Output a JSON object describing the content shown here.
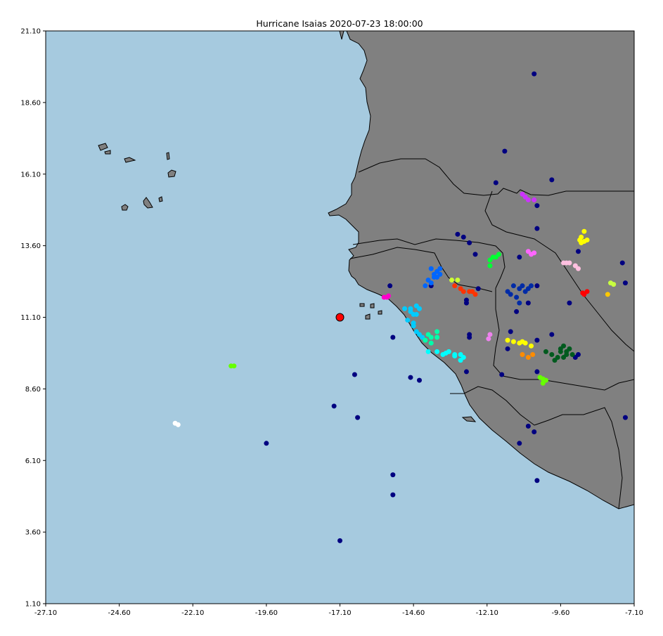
{
  "chart_data": {
    "type": "scatter",
    "title": "Hurricane Isaias 2020-07-23 18:00:00",
    "xlabel": "",
    "ylabel": "",
    "xlim": [
      -27.1,
      -7.1
    ],
    "ylim": [
      1.1,
      21.1
    ],
    "x_ticks": [
      "-27.10",
      "-24.60",
      "-22.10",
      "-19.60",
      "-17.10",
      "-14.60",
      "-12.10",
      "-9.60",
      "-7.10"
    ],
    "y_ticks": [
      "1.10",
      "3.60",
      "6.10",
      "8.60",
      "11.10",
      "13.60",
      "16.10",
      "18.60",
      "21.10"
    ],
    "grid": false,
    "colors": {
      "ocean": "#a6cadf",
      "land": "#808080",
      "border": "#000000",
      "storm_center": "#ff0000"
    },
    "storm_center": {
      "x": -17.1,
      "y": 11.1
    },
    "series": [
      {
        "color": "#000080",
        "points": [
          [
            -10.5,
            19.6
          ],
          [
            -11.5,
            16.9
          ],
          [
            -9.9,
            15.9
          ],
          [
            -11.8,
            15.8
          ],
          [
            -10.4,
            15.0
          ],
          [
            -10.4,
            14.2
          ],
          [
            -12.7,
            13.7
          ],
          [
            -12.9,
            13.9
          ],
          [
            -13.1,
            14.0
          ],
          [
            -12.5,
            13.3
          ],
          [
            -11.0,
            13.2
          ],
          [
            -9.0,
            13.4
          ],
          [
            -7.5,
            13.0
          ],
          [
            -7.4,
            12.3
          ],
          [
            -15.4,
            12.2
          ],
          [
            -14.0,
            12.2
          ],
          [
            -12.4,
            12.1
          ],
          [
            -12.8,
            11.7
          ],
          [
            -12.8,
            11.6
          ],
          [
            -10.7,
            11.6
          ],
          [
            -10.4,
            12.2
          ],
          [
            -9.3,
            11.6
          ],
          [
            -11.1,
            11.3
          ],
          [
            -11.3,
            10.6
          ],
          [
            -12.7,
            10.5
          ],
          [
            -12.7,
            10.4
          ],
          [
            -10.4,
            10.3
          ],
          [
            -9.9,
            10.5
          ],
          [
            -15.3,
            10.4
          ],
          [
            -11.4,
            10.0
          ],
          [
            -9.1,
            9.7
          ],
          [
            -9.0,
            9.8
          ],
          [
            -10.4,
            9.2
          ],
          [
            -12.8,
            9.2
          ],
          [
            -11.6,
            9.1
          ],
          [
            -14.7,
            9.0
          ],
          [
            -14.4,
            8.9
          ],
          [
            -16.6,
            9.1
          ],
          [
            -7.4,
            7.6
          ],
          [
            -10.7,
            7.3
          ],
          [
            -10.5,
            7.1
          ],
          [
            -11.0,
            6.7
          ],
          [
            -17.3,
            8.0
          ],
          [
            -16.5,
            7.6
          ],
          [
            -19.6,
            6.7
          ],
          [
            -15.3,
            5.6
          ],
          [
            -15.3,
            4.9
          ],
          [
            -10.4,
            5.4
          ],
          [
            -17.1,
            3.3
          ]
        ]
      },
      {
        "color": "#cc33ff",
        "points": [
          [
            -10.9,
            15.4
          ],
          [
            -10.7,
            15.2
          ],
          [
            -10.5,
            15.2
          ],
          [
            -10.8,
            15.3
          ]
        ]
      },
      {
        "color": "#ff66ff",
        "points": [
          [
            -10.6,
            13.3
          ],
          [
            -10.5,
            13.35
          ],
          [
            -10.7,
            13.4
          ]
        ]
      },
      {
        "color": "#ffff00",
        "points": [
          [
            -8.8,
            14.1
          ],
          [
            -8.9,
            13.9
          ],
          [
            -8.7,
            13.8
          ],
          [
            -8.95,
            13.8
          ],
          [
            -8.9,
            13.7
          ],
          [
            -8.8,
            13.75
          ]
        ]
      },
      {
        "color": "#00ff33",
        "points": [
          [
            -12.0,
            13.1
          ],
          [
            -11.9,
            13.2
          ],
          [
            -11.7,
            13.3
          ],
          [
            -11.8,
            13.2
          ],
          [
            -12.0,
            12.9
          ]
        ]
      },
      {
        "color": "#ffc0e0",
        "points": [
          [
            -9.5,
            13.0
          ],
          [
            -9.3,
            13.0
          ],
          [
            -9.1,
            12.9
          ],
          [
            -9.0,
            12.8
          ],
          [
            -9.4,
            13.0
          ]
        ]
      },
      {
        "color": "#0066ff",
        "points": [
          [
            -14.0,
            12.8
          ],
          [
            -13.9,
            12.6
          ],
          [
            -13.8,
            12.7
          ],
          [
            -13.7,
            12.6
          ],
          [
            -14.1,
            12.4
          ],
          [
            -13.9,
            12.5
          ],
          [
            -14.0,
            12.3
          ],
          [
            -14.2,
            12.2
          ],
          [
            -13.7,
            12.8
          ],
          [
            -13.8,
            12.5
          ]
        ]
      },
      {
        "color": "#ccff33",
        "points": [
          [
            -13.3,
            12.4
          ],
          [
            -13.1,
            12.4
          ]
        ]
      },
      {
        "color": "#ff3300",
        "points": [
          [
            -13.2,
            12.2
          ],
          [
            -13.0,
            12.1
          ],
          [
            -12.7,
            12.0
          ],
          [
            -12.5,
            11.9
          ],
          [
            -12.9,
            12.0
          ],
          [
            -12.6,
            12.0
          ]
        ]
      },
      {
        "color": "#002ba6",
        "points": [
          [
            -11.2,
            12.2
          ],
          [
            -11.0,
            12.1
          ],
          [
            -10.8,
            12.0
          ],
          [
            -11.3,
            11.9
          ],
          [
            -11.1,
            11.8
          ],
          [
            -11.0,
            11.6
          ],
          [
            -10.9,
            12.2
          ],
          [
            -10.7,
            12.1
          ],
          [
            -11.4,
            12.0
          ],
          [
            -10.6,
            12.2
          ]
        ]
      },
      {
        "color": "#ff0000",
        "points": [
          [
            -8.8,
            11.9
          ],
          [
            -8.7,
            12.0
          ],
          [
            -8.85,
            11.95
          ]
        ]
      },
      {
        "color": "#c8ff40",
        "points": [
          [
            -7.9,
            12.3
          ],
          [
            -7.8,
            12.25
          ]
        ]
      },
      {
        "color": "#ffc800",
        "points": [
          [
            -8.0,
            11.9
          ]
        ]
      },
      {
        "color": "#ff00cc",
        "points": [
          [
            -15.6,
            11.8
          ],
          [
            -15.5,
            11.8
          ],
          [
            -15.45,
            11.85
          ]
        ]
      },
      {
        "color": "#00ccff",
        "points": [
          [
            -14.9,
            11.4
          ],
          [
            -14.7,
            11.3
          ],
          [
            -14.5,
            11.5
          ],
          [
            -14.6,
            11.2
          ],
          [
            -14.8,
            11.0
          ],
          [
            -14.6,
            10.9
          ],
          [
            -14.7,
            11.4
          ],
          [
            -14.5,
            11.2
          ],
          [
            -14.4,
            11.4
          ],
          [
            -14.5,
            10.6
          ],
          [
            -14.4,
            10.5
          ],
          [
            -14.3,
            10.4
          ],
          [
            -14.6,
            10.8
          ]
        ]
      },
      {
        "color": "#00ffaa",
        "points": [
          [
            -14.1,
            10.5
          ],
          [
            -14.0,
            10.4
          ],
          [
            -13.8,
            10.6
          ],
          [
            -14.2,
            10.3
          ],
          [
            -14.0,
            10.2
          ],
          [
            -13.8,
            10.4
          ]
        ]
      },
      {
        "color": "#00ffff",
        "points": [
          [
            -14.1,
            9.9
          ],
          [
            -13.8,
            9.9
          ],
          [
            -13.6,
            9.8
          ],
          [
            -13.4,
            9.9
          ],
          [
            -13.2,
            9.8
          ],
          [
            -13.0,
            9.8
          ],
          [
            -12.9,
            9.7
          ],
          [
            -13.0,
            9.6
          ],
          [
            -13.2,
            9.75
          ],
          [
            -13.5,
            9.85
          ]
        ]
      },
      {
        "color": "#ee82ee",
        "points": [
          [
            -12.0,
            10.5
          ],
          [
            -12.05,
            10.35
          ]
        ]
      },
      {
        "color": "#ffff00",
        "points": [
          [
            -11.4,
            10.3
          ],
          [
            -11.2,
            10.25
          ],
          [
            -11.0,
            10.2
          ],
          [
            -10.8,
            10.2
          ],
          [
            -10.6,
            10.1
          ],
          [
            -10.9,
            10.25
          ]
        ]
      },
      {
        "color": "#ff8c00",
        "points": [
          [
            -10.9,
            9.8
          ],
          [
            -10.7,
            9.7
          ],
          [
            -10.55,
            9.8
          ]
        ]
      },
      {
        "color": "#005a1e",
        "points": [
          [
            -9.5,
            10.1
          ],
          [
            -9.3,
            10.0
          ],
          [
            -9.4,
            9.8
          ],
          [
            -9.6,
            9.9
          ],
          [
            -9.7,
            9.7
          ],
          [
            -9.8,
            9.6
          ],
          [
            -9.5,
            9.7
          ],
          [
            -9.2,
            9.8
          ],
          [
            -10.1,
            9.9
          ],
          [
            -9.9,
            9.8
          ],
          [
            -9.4,
            9.9
          ],
          [
            -9.6,
            10.0
          ]
        ]
      },
      {
        "color": "#66ff00",
        "points": [
          [
            -10.3,
            9.0
          ],
          [
            -10.2,
            8.95
          ],
          [
            -10.1,
            8.9
          ],
          [
            -10.2,
            8.8
          ]
        ]
      },
      {
        "color": "#66ff00",
        "points": [
          [
            -20.8,
            9.4
          ],
          [
            -20.7,
            9.4
          ]
        ]
      },
      {
        "color": "#ffffff",
        "points": [
          [
            -22.7,
            7.4
          ],
          [
            -22.6,
            7.35
          ]
        ]
      }
    ]
  }
}
